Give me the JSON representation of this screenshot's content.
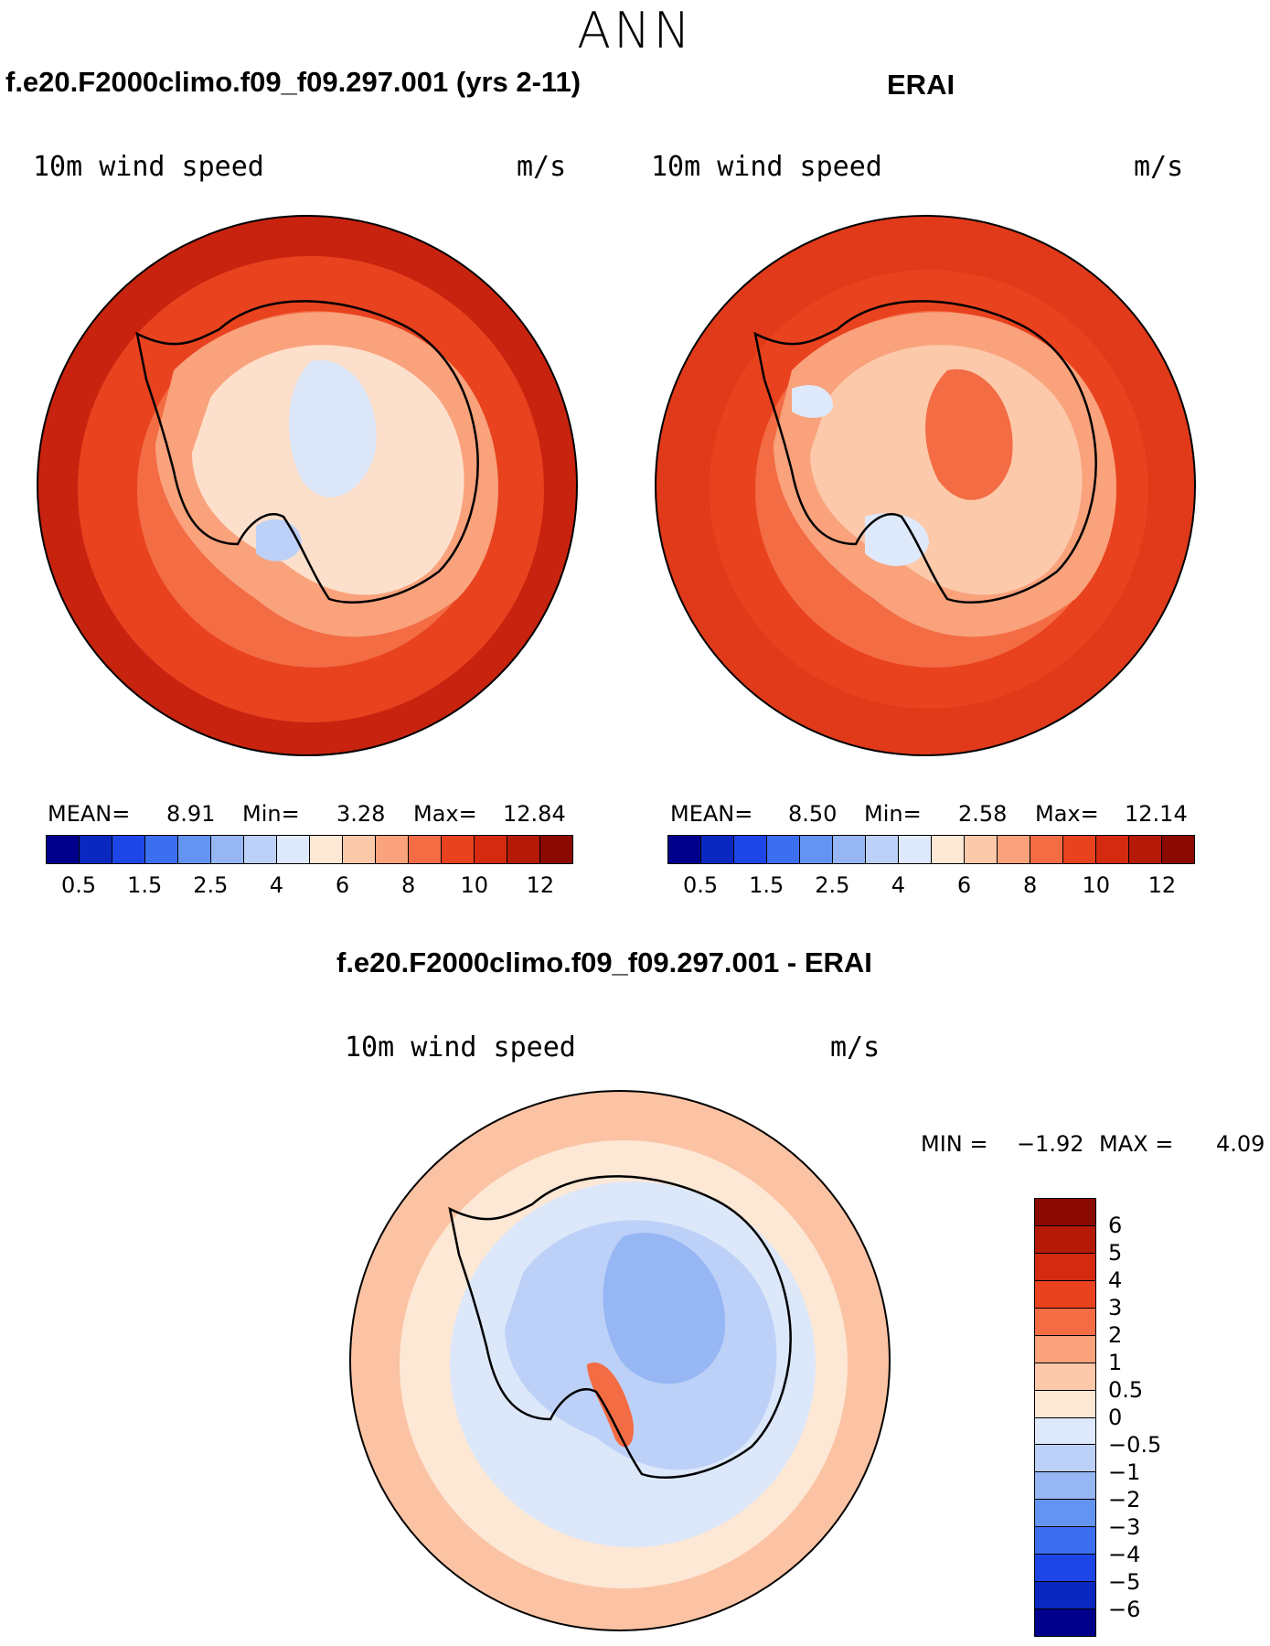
{
  "page_title": "ANN",
  "panels": [
    {
      "title": "f.e20.F2000climo.f09_f09.297.001 (yrs 2-11)",
      "variable": "10m wind speed",
      "units": "m/s",
      "stats": {
        "mean_label": "MEAN=",
        "mean": "8.91",
        "min_label": "Min=",
        "min": "3.28",
        "max_label": "Max=",
        "max": "12.84"
      },
      "base_color": "#e8421f",
      "ocean_outer_color": "#c8230f",
      "coast_color": "#f6a07a",
      "continent_color": "#fde0cc",
      "interior_color": "#dce8fa"
    },
    {
      "title": "ERAI",
      "variable": "10m wind speed",
      "units": "m/s",
      "stats": {
        "mean_label": "MEAN=",
        "mean": "8.50",
        "min_label": "Min=",
        "min": "2.58",
        "max_label": "Max=",
        "max": "12.14"
      },
      "base_color": "#e8421f",
      "ocean_outer_color": "#e03a1a",
      "coast_color": "#f6a07a",
      "continent_color": "#fde0cc",
      "interior_color": "#dce8fa"
    }
  ],
  "colorbar_main": {
    "colors": [
      "#00008b",
      "#0a28c0",
      "#1e46e6",
      "#3c6ef0",
      "#6494f2",
      "#96b6f4",
      "#bdd1f8",
      "#dee9fb",
      "#fde7d5",
      "#fcc9ab",
      "#f9a27c",
      "#f36c44",
      "#e9421e",
      "#d32a10",
      "#b51a08",
      "#8a0a02"
    ],
    "labels": [
      "0.5",
      "1.5",
      "2.5",
      "4",
      "6",
      "8",
      "10",
      "12"
    ]
  },
  "diff_panel": {
    "title": "f.e20.F2000climo.f09_f09.297.001 - ERAI",
    "variable": "10m wind speed",
    "units": "m/s",
    "stats": {
      "min_label": "MIN =",
      "min": "−1.92",
      "max_label": "MAX =",
      "max": "4.09"
    },
    "ocean_color": "#fbc3a4",
    "ring_color": "#fde7d5",
    "negative_color": "#dce8fa",
    "interior_color": "#a6c1f3"
  },
  "colorbar_diff": {
    "colors": [
      "#8a0a02",
      "#b51a08",
      "#d32a10",
      "#e9421e",
      "#f36c44",
      "#f9a27c",
      "#fcc9ab",
      "#fde7d5",
      "#dee9fb",
      "#bdd1f8",
      "#96b6f4",
      "#6494f2",
      "#3c6ef0",
      "#1e46e6",
      "#0a28c0",
      "#00008b"
    ],
    "labels": [
      "6",
      "5",
      "4",
      "3",
      "2",
      "1",
      "0.5",
      "0",
      "−0.5",
      "−1",
      "−2",
      "−3",
      "−4",
      "−5",
      "−6"
    ]
  }
}
